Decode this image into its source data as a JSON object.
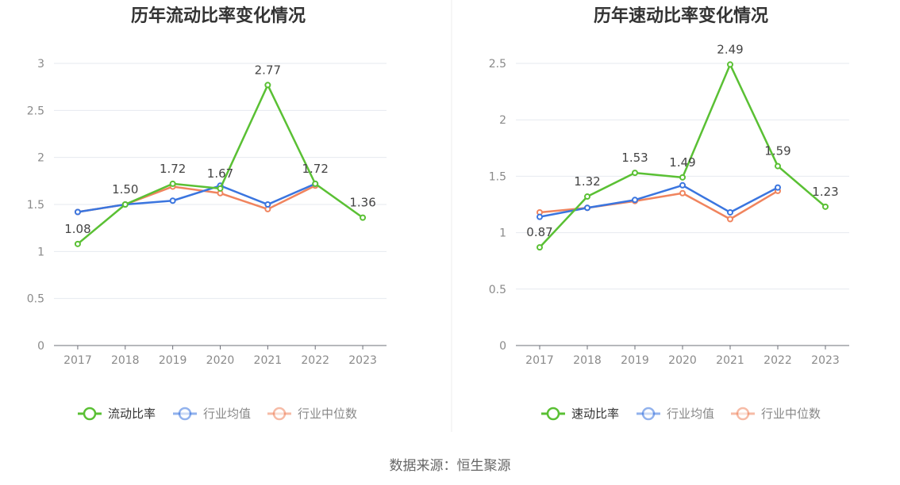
{
  "source_text": "数据来源：恒生聚源",
  "chart_data": [
    {
      "type": "line",
      "title": "历年流动比率变化情况",
      "categories": [
        "2017",
        "2018",
        "2019",
        "2020",
        "2021",
        "2022",
        "2023"
      ],
      "ylim": [
        0,
        3
      ],
      "yticks": [
        0,
        0.5,
        1,
        1.5,
        2,
        2.5,
        3
      ],
      "ytick_labels": [
        "0",
        "0.5",
        "1",
        "1.5",
        "2",
        "2.5",
        "3"
      ],
      "grid": true,
      "legend_position": "bottom",
      "series": [
        {
          "name": "流动比率",
          "color": "#5ac034",
          "values": [
            1.08,
            1.5,
            1.72,
            1.67,
            2.77,
            1.72,
            1.36
          ],
          "labels": [
            "1.08",
            "1.50",
            "1.72",
            "1.67",
            "2.77",
            "1.72",
            "1.36"
          ]
        },
        {
          "name": "行业均值",
          "color": "#3a75df",
          "values": [
            1.42,
            1.5,
            1.54,
            1.7,
            1.5,
            1.72,
            null
          ]
        },
        {
          "name": "行业中位数",
          "color": "#f0845e",
          "values": [
            1.42,
            1.5,
            1.69,
            1.62,
            1.45,
            1.7,
            null
          ]
        }
      ]
    },
    {
      "type": "line",
      "title": "历年速动比率变化情况",
      "categories": [
        "2017",
        "2018",
        "2019",
        "2020",
        "2021",
        "2022",
        "2023"
      ],
      "ylim": [
        0,
        2.5
      ],
      "yticks": [
        0,
        0.5,
        1,
        1.5,
        2,
        2.5
      ],
      "ytick_labels": [
        "0",
        "0.5",
        "1",
        "1.5",
        "2",
        "2.5"
      ],
      "grid": true,
      "legend_position": "bottom",
      "series": [
        {
          "name": "速动比率",
          "color": "#5ac034",
          "values": [
            0.87,
            1.32,
            1.53,
            1.49,
            2.49,
            1.59,
            1.23
          ],
          "labels": [
            "0.87",
            "1.32",
            "1.53",
            "1.49",
            "2.49",
            "1.59",
            "1.23"
          ]
        },
        {
          "name": "行业均值",
          "color": "#3a75df",
          "values": [
            1.14,
            1.22,
            1.29,
            1.42,
            1.18,
            1.4,
            null
          ]
        },
        {
          "name": "行业中位数",
          "color": "#f0845e",
          "values": [
            1.18,
            1.22,
            1.28,
            1.35,
            1.12,
            1.37,
            null
          ]
        }
      ]
    }
  ]
}
